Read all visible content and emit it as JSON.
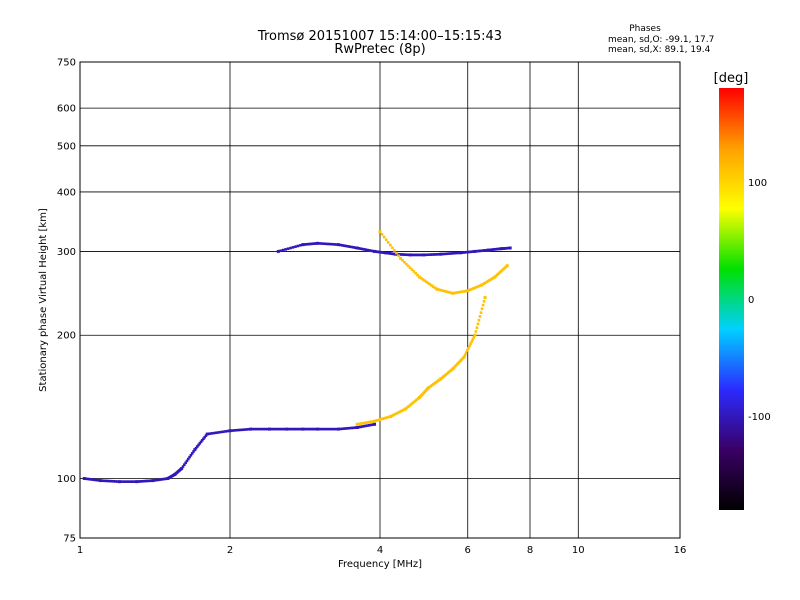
{
  "chart_data": {
    "type": "scatter",
    "title": "Tromsø 20151007 15:14:00–15:15:43",
    "subtitle": "RwPretec (8p)",
    "xlabel": "Frequency [MHz]",
    "ylabel": "Stationary phase Virtual Height [km]",
    "x_scale": "log",
    "y_scale": "log",
    "xlim": [
      1,
      16
    ],
    "ylim": [
      75,
      750
    ],
    "x_ticks": [
      1,
      2,
      4,
      6,
      8,
      10,
      16
    ],
    "x_tick_labels": [
      "1",
      "2",
      "4",
      "6",
      "8",
      "10",
      "16"
    ],
    "y_ticks": [
      75,
      100,
      200,
      300,
      400,
      500,
      600,
      750
    ],
    "y_tick_labels": [
      "75",
      "100",
      "200",
      "300",
      "400",
      "500",
      "600",
      "750"
    ],
    "grid": true,
    "stats": {
      "heading": "Phases",
      "line_o": "mean, sd,O: -99.1, 17.7",
      "line_x": "mean, sd,X:  89.1, 19.4"
    },
    "colorbar": {
      "label": "[deg]",
      "range": [
        -180,
        180
      ],
      "ticks": [
        100,
        0,
        -100
      ],
      "tick_labels": [
        "100",
        "0",
        "-100"
      ],
      "colors": [
        "#000000",
        "#3a0066",
        "#2b2bff",
        "#00d0ff",
        "#00e000",
        "#ffff00",
        "#ffa000",
        "#ff0000"
      ]
    },
    "traces": [
      {
        "mode": "O",
        "phase_deg": -100,
        "x": [
          1.02,
          1.1,
          1.2,
          1.3,
          1.4,
          1.5,
          1.55,
          1.6,
          1.7,
          1.8,
          2.0,
          2.2,
          2.4,
          2.6,
          2.8,
          3.0,
          3.3,
          3.6,
          3.9
        ],
        "y": [
          100,
          99,
          98.5,
          98.5,
          99,
          100,
          102,
          105,
          115,
          124,
          126,
          127,
          127,
          127,
          127,
          127,
          127,
          128,
          130
        ]
      },
      {
        "mode": "O",
        "phase_deg": -100,
        "x": [
          2.5,
          2.8,
          3.0,
          3.3,
          3.6,
          3.9,
          4.1,
          4.3,
          4.6,
          4.9,
          5.3,
          5.8,
          6.2,
          6.6,
          7.0,
          7.3
        ],
        "y": [
          300,
          310,
          312,
          310,
          305,
          300,
          298,
          296,
          295,
          295,
          296,
          298,
          300,
          302,
          304,
          305
        ]
      },
      {
        "mode": "X",
        "phase_deg": 110,
        "x": [
          3.6,
          3.9,
          4.2,
          4.5,
          4.8,
          5.0,
          5.3,
          5.6,
          5.9,
          6.2,
          6.5
        ],
        "y": [
          130,
          132,
          135,
          140,
          148,
          155,
          162,
          170,
          180,
          200,
          240
        ]
      },
      {
        "mode": "X",
        "phase_deg": 110,
        "x": [
          4.0,
          4.4,
          4.8,
          5.2,
          5.6,
          6.0,
          6.4,
          6.8,
          7.2
        ],
        "y": [
          330,
          290,
          265,
          250,
          245,
          248,
          255,
          265,
          280
        ]
      }
    ]
  }
}
